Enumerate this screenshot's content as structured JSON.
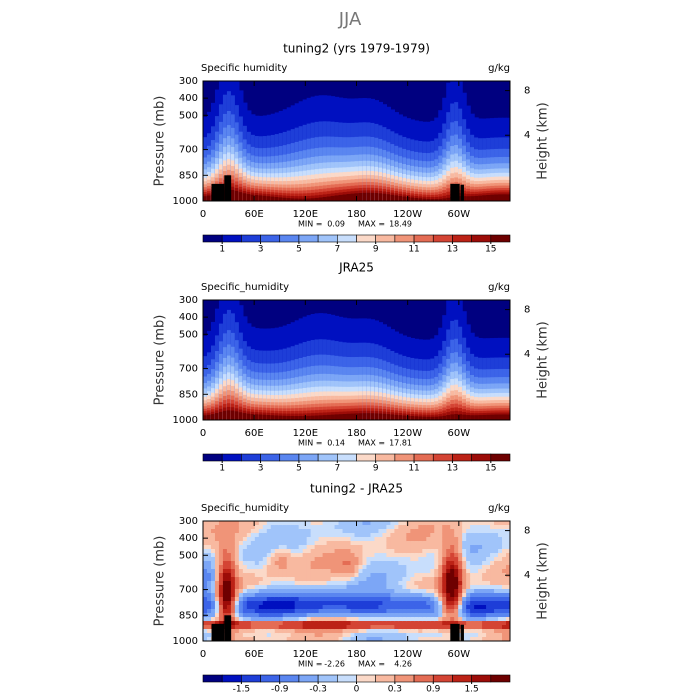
{
  "figure_title": "JJA",
  "chart_data": [
    {
      "type": "contour",
      "title": "tuning2 (yrs 1979-1979)",
      "left_label": "Specific humidity",
      "right_label": "g/kg",
      "ylabel": "Pressure (mb)",
      "y2label": "Height (km)",
      "xlim": [
        0,
        360
      ],
      "xticks": [
        0,
        {
          "value": 60,
          "label": "60E"
        },
        {
          "value": 120,
          "label": "120E"
        },
        180,
        {
          "value": 240,
          "label": "120W"
        },
        {
          "value": 300,
          "label": "60W"
        }
      ],
      "ylim": [
        1000,
        300
      ],
      "yticks": [
        300,
        400,
        500,
        700,
        850,
        1000
      ],
      "y2ticks": [
        4,
        8
      ],
      "min_label": "MIN =",
      "min": 0.09,
      "max_label": "MAX =",
      "max": 18.49,
      "levels": [
        1,
        2,
        3,
        4,
        5,
        6,
        7,
        8,
        9,
        10,
        11,
        12,
        13,
        14,
        15
      ],
      "colors": [
        "#000080",
        "#0010c0",
        "#1e3ed8",
        "#3c64e8",
        "#5a86f0",
        "#7ca6f6",
        "#a0c4fa",
        "#c8defc",
        "#fbd9c8",
        "#f8b9a0",
        "#f09478",
        "#e46c54",
        "#d44434",
        "#bc2216",
        "#9c0c08",
        "#6e0000"
      ],
      "cbticks": [
        1,
        3,
        5,
        7,
        9,
        11,
        13,
        15
      ]
    },
    {
      "type": "contour",
      "title": "JRA25",
      "left_label": "Specific_humidity",
      "right_label": "g/kg",
      "ylabel": "Pressure (mb)",
      "y2label": "Height (km)",
      "xlim": [
        0,
        360
      ],
      "xticks": [
        0,
        {
          "value": 60,
          "label": "60E"
        },
        {
          "value": 120,
          "label": "120E"
        },
        180,
        {
          "value": 240,
          "label": "120W"
        },
        {
          "value": 300,
          "label": "60W"
        }
      ],
      "ylim": [
        1000,
        300
      ],
      "yticks": [
        300,
        400,
        500,
        700,
        850,
        1000
      ],
      "y2ticks": [
        4,
        8
      ],
      "min_label": "MIN =",
      "min": 0.14,
      "max_label": "MAX =",
      "max": 17.81,
      "levels": [
        1,
        2,
        3,
        4,
        5,
        6,
        7,
        8,
        9,
        10,
        11,
        12,
        13,
        14,
        15
      ],
      "colors": [
        "#000080",
        "#0010c0",
        "#1e3ed8",
        "#3c64e8",
        "#5a86f0",
        "#7ca6f6",
        "#a0c4fa",
        "#c8defc",
        "#fbd9c8",
        "#f8b9a0",
        "#f09478",
        "#e46c54",
        "#d44434",
        "#bc2216",
        "#9c0c08",
        "#6e0000"
      ],
      "cbticks": [
        1,
        3,
        5,
        7,
        9,
        11,
        13,
        15
      ]
    },
    {
      "type": "contour-diff",
      "title": "tuning2 - JRA25",
      "left_label": "Specific_humidity",
      "right_label": "g/kg",
      "ylabel": "Pressure (mb)",
      "y2label": "Height (km)",
      "xlim": [
        0,
        360
      ],
      "xticks": [
        0,
        {
          "value": 60,
          "label": "60E"
        },
        {
          "value": 120,
          "label": "120E"
        },
        180,
        {
          "value": 240,
          "label": "120W"
        },
        {
          "value": 300,
          "label": "60W"
        }
      ],
      "ylim": [
        1000,
        300
      ],
      "yticks": [
        300,
        400,
        500,
        700,
        850,
        1000
      ],
      "y2ticks": [
        4,
        8
      ],
      "min_label": "MIN =",
      "min": -2.26,
      "max_label": "MAX =",
      "max": 4.26,
      "levels": [
        -1.8,
        -1.5,
        -1.2,
        -0.9,
        -0.6,
        -0.3,
        -0.1,
        0,
        0.1,
        0.3,
        0.6,
        0.9,
        1.2,
        1.5,
        1.8
      ],
      "colors": [
        "#000080",
        "#0010c0",
        "#1e3ed8",
        "#3c64e8",
        "#5a86f0",
        "#7ca6f6",
        "#a0c4fa",
        "#c8defc",
        "#fbd9c8",
        "#f8b9a0",
        "#f09478",
        "#e46c54",
        "#d44434",
        "#bc2216",
        "#9c0c08",
        "#6e0000"
      ],
      "cbticks": [
        -1.5,
        -0.9,
        -0.3,
        0,
        0.3,
        0.9,
        1.5
      ]
    }
  ]
}
